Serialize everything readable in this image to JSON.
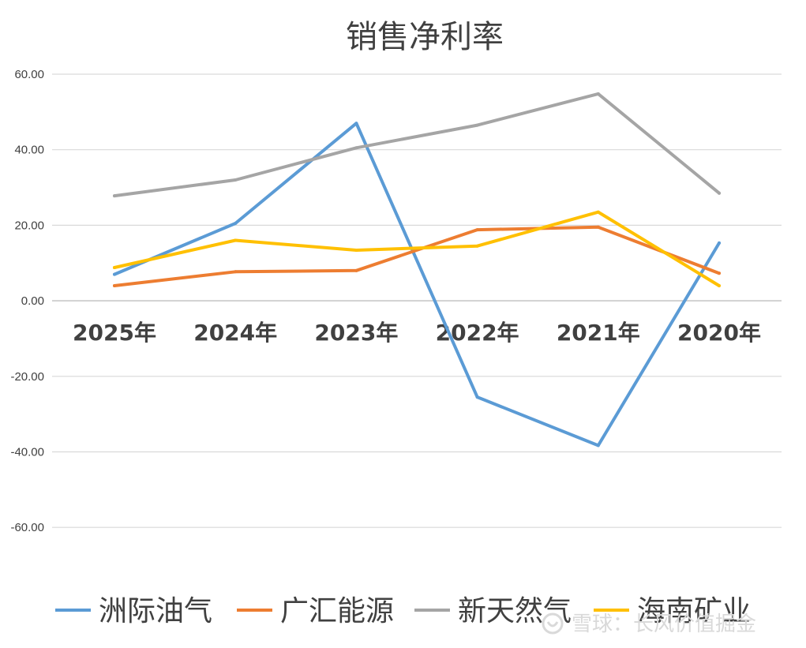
{
  "chart_data": {
    "type": "line",
    "title": "销售净利率",
    "categories": [
      "2025年",
      "2024年",
      "2023年",
      "2022年",
      "2021年",
      "2020年"
    ],
    "ylim": [
      -70,
      60
    ],
    "yticks": [
      60,
      40,
      20,
      0,
      -20,
      -40,
      -60
    ],
    "ytick_labels": [
      "60.00",
      "40.00",
      "20.00",
      "0.00",
      "-20.00",
      "-40.00",
      "-60.00"
    ],
    "grid": true,
    "legend_position": "bottom",
    "series": [
      {
        "name": "洲际油气",
        "color": "#5B9BD5",
        "values": [
          7.0,
          20.5,
          47.0,
          -25.5,
          -38.3,
          15.3
        ]
      },
      {
        "name": "广汇能源",
        "color": "#ED7D31",
        "values": [
          4.0,
          7.7,
          8.0,
          18.8,
          19.5,
          7.3
        ]
      },
      {
        "name": "新天然气",
        "color": "#A5A5A5",
        "values": [
          27.8,
          32.0,
          40.5,
          46.5,
          54.8,
          28.5
        ]
      },
      {
        "name": "海南矿业",
        "color": "#FFC000",
        "values": [
          8.8,
          16.0,
          13.4,
          14.5,
          23.5,
          4.0
        ]
      }
    ]
  },
  "watermark": {
    "text": "雪球：长风价值掘金"
  }
}
